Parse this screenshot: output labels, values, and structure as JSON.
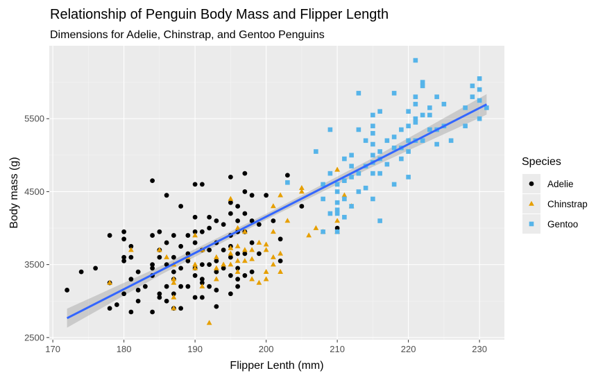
{
  "chart_data": {
    "type": "scatter",
    "title": "Relationship of Penguin Body Mass and Flipper Length",
    "subtitle": "Dimensions for Adelie, Chinstrap, and Gentoo Penguins",
    "xlabel": "Flipper Lenth (mm)",
    "ylabel": "Body mass (g)",
    "xlim": [
      169.5,
      233.5
    ],
    "ylim": [
      2470,
      6500
    ],
    "x_ticks": [
      170,
      180,
      190,
      200,
      210,
      220,
      230
    ],
    "y_ticks": [
      2500,
      3500,
      4500,
      5500
    ],
    "grid": true,
    "legend": {
      "title": "Species",
      "position": "right"
    },
    "trend": {
      "method": "lm",
      "x_range": [
        172,
        231
      ],
      "intercept": -5780.83,
      "slope": 49.6856,
      "se_band": [
        [
          172,
          130
        ],
        [
          185,
          60
        ],
        [
          200.9,
          40
        ],
        [
          215,
          60
        ],
        [
          231,
          140
        ]
      ]
    },
    "series": [
      {
        "name": "Adelie",
        "marker": "circle",
        "color": "#000000",
        "points": [
          [
            172,
            3150
          ],
          [
            174,
            3400
          ],
          [
            176,
            3450
          ],
          [
            178,
            3900
          ],
          [
            178,
            2900
          ],
          [
            178,
            3250
          ],
          [
            179,
            2950
          ],
          [
            180,
            3950
          ],
          [
            180,
            3850
          ],
          [
            180,
            3600
          ],
          [
            180,
            3550
          ],
          [
            180,
            3100
          ],
          [
            181,
            3600
          ],
          [
            181,
            3750
          ],
          [
            181,
            3300
          ],
          [
            181,
            2850
          ],
          [
            182,
            3000
          ],
          [
            182,
            3150
          ],
          [
            182,
            3400
          ],
          [
            183,
            3200
          ],
          [
            184,
            4650
          ],
          [
            184,
            3900
          ],
          [
            184,
            3500
          ],
          [
            184,
            3450
          ],
          [
            184,
            3350
          ],
          [
            184,
            2850
          ],
          [
            185,
            3950
          ],
          [
            185,
            3700
          ],
          [
            185,
            3600
          ],
          [
            185,
            3100
          ],
          [
            185,
            3050
          ],
          [
            186,
            4450
          ],
          [
            186,
            3800
          ],
          [
            186,
            3500
          ],
          [
            186,
            3200
          ],
          [
            186,
            3000
          ],
          [
            187,
            3900
          ],
          [
            187,
            3600
          ],
          [
            187,
            3400
          ],
          [
            187,
            3300
          ],
          [
            187,
            3100
          ],
          [
            187,
            2900
          ],
          [
            188,
            4300
          ],
          [
            188,
            3750
          ],
          [
            188,
            3450
          ],
          [
            188,
            3200
          ],
          [
            188,
            2900
          ],
          [
            189,
            3550
          ],
          [
            189,
            3200
          ],
          [
            189,
            3900
          ],
          [
            189,
            3650
          ],
          [
            190,
            4600
          ],
          [
            190,
            4150
          ],
          [
            190,
            3950
          ],
          [
            190,
            3800
          ],
          [
            190,
            3450
          ],
          [
            190,
            3350
          ],
          [
            190,
            3050
          ],
          [
            191,
            4600
          ],
          [
            191,
            3950
          ],
          [
            191,
            3700
          ],
          [
            191,
            3500
          ],
          [
            191,
            3300
          ],
          [
            191,
            3050
          ],
          [
            191,
            3250
          ],
          [
            192,
            4150
          ],
          [
            192,
            4000
          ],
          [
            192,
            3700
          ],
          [
            192,
            3500
          ],
          [
            192,
            3200
          ],
          [
            193,
            4100
          ],
          [
            193,
            3800
          ],
          [
            193,
            3550
          ],
          [
            193,
            3400
          ],
          [
            193,
            3150
          ],
          [
            193,
            2925
          ],
          [
            194,
            4050
          ],
          [
            194,
            3700
          ],
          [
            194,
            3450
          ],
          [
            195,
            4700
          ],
          [
            195,
            4350
          ],
          [
            195,
            4200
          ],
          [
            195,
            3900
          ],
          [
            195,
            3750
          ],
          [
            195,
            3600
          ],
          [
            195,
            3350
          ],
          [
            195,
            3100
          ],
          [
            196,
            4300
          ],
          [
            196,
            4100
          ],
          [
            196,
            3950
          ],
          [
            196,
            3650
          ],
          [
            196,
            3450
          ],
          [
            196,
            3300
          ],
          [
            196,
            3200
          ],
          [
            197,
            4750
          ],
          [
            197,
            4500
          ],
          [
            197,
            4200
          ],
          [
            197,
            3950
          ],
          [
            197,
            3650
          ],
          [
            197,
            3350
          ],
          [
            198,
            4450
          ],
          [
            198,
            4100
          ],
          [
            198,
            3800
          ],
          [
            198,
            3400
          ],
          [
            199,
            4050
          ],
          [
            199,
            3650
          ],
          [
            200,
            4450
          ],
          [
            201,
            4100
          ],
          [
            202,
            3850
          ],
          [
            202,
            3550
          ],
          [
            203,
            4725
          ],
          [
            205,
            4300
          ],
          [
            210,
            4000
          ]
        ]
      },
      {
        "name": "Chinstrap",
        "marker": "triangle",
        "color": "#E69F00",
        "points": [
          [
            178,
            3250
          ],
          [
            181,
            3700
          ],
          [
            185,
            3700
          ],
          [
            186,
            3600
          ],
          [
            187,
            3300
          ],
          [
            187,
            3500
          ],
          [
            187,
            2900
          ],
          [
            187,
            3250
          ],
          [
            187,
            3050
          ],
          [
            189,
            3600
          ],
          [
            190,
            3450
          ],
          [
            190,
            3500
          ],
          [
            190,
            3900
          ],
          [
            191,
            3700
          ],
          [
            191,
            3200
          ],
          [
            192,
            2700
          ],
          [
            193,
            3300
          ],
          [
            193,
            3450
          ],
          [
            193,
            3600
          ],
          [
            194,
            3500
          ],
          [
            195,
            4400
          ],
          [
            195,
            3725
          ],
          [
            195,
            3500
          ],
          [
            195,
            3650
          ],
          [
            196,
            3550
          ],
          [
            196,
            3750
          ],
          [
            196,
            4000
          ],
          [
            196,
            3400
          ],
          [
            197,
            3700
          ],
          [
            197,
            3950
          ],
          [
            197,
            3550
          ],
          [
            198,
            3700
          ],
          [
            198,
            3575
          ],
          [
            198,
            3300
          ],
          [
            199,
            3800
          ],
          [
            199,
            3250
          ],
          [
            200,
            3700
          ],
          [
            200,
            3775
          ],
          [
            200,
            3400
          ],
          [
            200,
            3300
          ],
          [
            201,
            4300
          ],
          [
            201,
            3600
          ],
          [
            201,
            3950
          ],
          [
            201,
            3500
          ],
          [
            202,
            4450
          ],
          [
            202,
            3650
          ],
          [
            202,
            3400
          ],
          [
            203,
            4100
          ],
          [
            205,
            4550
          ],
          [
            205,
            4500
          ],
          [
            206,
            3900
          ],
          [
            207,
            4000
          ],
          [
            208,
            3950
          ],
          [
            210,
            4800
          ],
          [
            210,
            4100
          ],
          [
            210,
            3950
          ],
          [
            211,
            4450
          ],
          [
            212,
            4300
          ]
        ]
      },
      {
        "name": "Gentoo",
        "marker": "square",
        "color": "#56B4E9",
        "points": [
          [
            203,
            4625
          ],
          [
            207,
            5050
          ],
          [
            208,
            4400
          ],
          [
            208,
            3950
          ],
          [
            208,
            4600
          ],
          [
            209,
            5350
          ],
          [
            209,
            4200
          ],
          [
            209,
            4750
          ],
          [
            210,
            4600
          ],
          [
            210,
            4500
          ],
          [
            210,
            4350
          ],
          [
            210,
            4200
          ],
          [
            210,
            3950
          ],
          [
            210,
            4250
          ],
          [
            211,
            4950
          ],
          [
            211,
            4650
          ],
          [
            211,
            4400
          ],
          [
            211,
            4150
          ],
          [
            212,
            5000
          ],
          [
            212,
            4850
          ],
          [
            212,
            4700
          ],
          [
            212,
            4300
          ],
          [
            213,
            5850
          ],
          [
            213,
            4500
          ],
          [
            213,
            5350
          ],
          [
            213,
            4750
          ],
          [
            214,
            5200
          ],
          [
            214,
            4550
          ],
          [
            214,
            4850
          ],
          [
            215,
            5400
          ],
          [
            215,
            5300
          ],
          [
            215,
            5150
          ],
          [
            215,
            5000
          ],
          [
            215,
            4900
          ],
          [
            215,
            4750
          ],
          [
            215,
            4400
          ],
          [
            215,
            5550
          ],
          [
            216,
            4750
          ],
          [
            216,
            5600
          ],
          [
            216,
            4100
          ],
          [
            216,
            4950
          ],
          [
            216,
            5050
          ],
          [
            217,
            4875
          ],
          [
            217,
            5200
          ],
          [
            218,
            5850
          ],
          [
            218,
            5250
          ],
          [
            218,
            4600
          ],
          [
            218,
            5100
          ],
          [
            219,
            5100
          ],
          [
            219,
            4950
          ],
          [
            219,
            5350
          ],
          [
            220,
            5600
          ],
          [
            220,
            5400
          ],
          [
            220,
            5050
          ],
          [
            220,
            5200
          ],
          [
            220,
            4700
          ],
          [
            221,
            6300
          ],
          [
            221,
            5800
          ],
          [
            221,
            5700
          ],
          [
            221,
            5500
          ],
          [
            221,
            5200
          ],
          [
            221,
            5450
          ],
          [
            222,
            6000
          ],
          [
            222,
            5550
          ],
          [
            222,
            5200
          ],
          [
            222,
            5950
          ],
          [
            223,
            5550
          ],
          [
            223,
            5350
          ],
          [
            223,
            5650
          ],
          [
            224,
            5800
          ],
          [
            224,
            5350
          ],
          [
            224,
            5150
          ],
          [
            225,
            5700
          ],
          [
            225,
            5400
          ],
          [
            226,
            5200
          ],
          [
            228,
            5650
          ],
          [
            228,
            5400
          ],
          [
            229,
            5950
          ],
          [
            229,
            5800
          ],
          [
            230,
            6050
          ],
          [
            230,
            5900
          ],
          [
            230,
            5750
          ],
          [
            230,
            5500
          ],
          [
            231,
            5650
          ]
        ]
      }
    ]
  }
}
